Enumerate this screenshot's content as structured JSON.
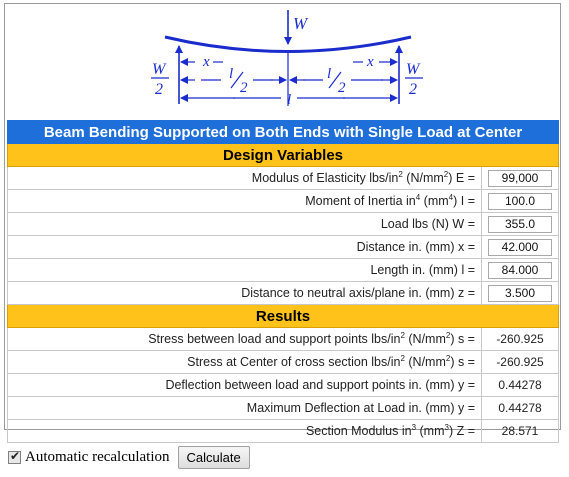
{
  "diagram": {
    "load": "W",
    "half_load": "W",
    "half_den": "2",
    "dist_x": "x",
    "half_len_num": "l",
    "half_len_den": "2",
    "length": "l"
  },
  "title": "Beam Bending Supported on Both Ends with Single Load at Center",
  "design_variables": {
    "header": "Design Variables",
    "rows": [
      {
        "label": "Modulus of Elasticity lbs/in",
        "sup1": "2",
        "mid": " (N/mm",
        "sup2": "2",
        "tail": ") E =",
        "value": "99,000"
      },
      {
        "label": "Moment of Inertia in",
        "sup1": "4",
        "mid": " (mm",
        "sup2": "4",
        "tail": ") I =",
        "value": "100.0"
      },
      {
        "label": "Load lbs (N) W =",
        "sup1": "",
        "mid": "",
        "sup2": "",
        "tail": "",
        "value": "355.0"
      },
      {
        "label": "Distance in. (mm) x =",
        "sup1": "",
        "mid": "",
        "sup2": "",
        "tail": "",
        "value": "42.000"
      },
      {
        "label": "Length in. (mm) l =",
        "sup1": "",
        "mid": "",
        "sup2": "",
        "tail": "",
        "value": "84.000"
      },
      {
        "label": "Distance to neutral axis/plane in. (mm) z =",
        "sup1": "",
        "mid": "",
        "sup2": "",
        "tail": "",
        "value": "3.500"
      }
    ]
  },
  "results": {
    "header": "Results",
    "rows": [
      {
        "label": "Stress between load and support points lbs/in",
        "sup1": "2",
        "mid": " (N/mm",
        "sup2": "2",
        "tail": ") s =",
        "value": "-260.925"
      },
      {
        "label": "Stress at Center of cross section lbs/in",
        "sup1": "2",
        "mid": " (N/mm",
        "sup2": "2",
        "tail": ") s =",
        "value": "-260.925"
      },
      {
        "label": "Deflection between load and support points in. (mm) y =",
        "sup1": "",
        "mid": "",
        "sup2": "",
        "tail": "",
        "value": "0.44278"
      },
      {
        "label": "Maximum Deflection at Load in. (mm) y =",
        "sup1": "",
        "mid": "",
        "sup2": "",
        "tail": "",
        "value": "0.44278"
      },
      {
        "label": "Section Modulus in",
        "sup1": "3",
        "mid": " (mm",
        "sup2": "3",
        "tail": ") Z =",
        "value": "28.571"
      }
    ]
  },
  "controls": {
    "auto_recalc_label": "Automatic recalculation",
    "auto_recalc_checked": true,
    "calculate_label": "Calculate"
  }
}
